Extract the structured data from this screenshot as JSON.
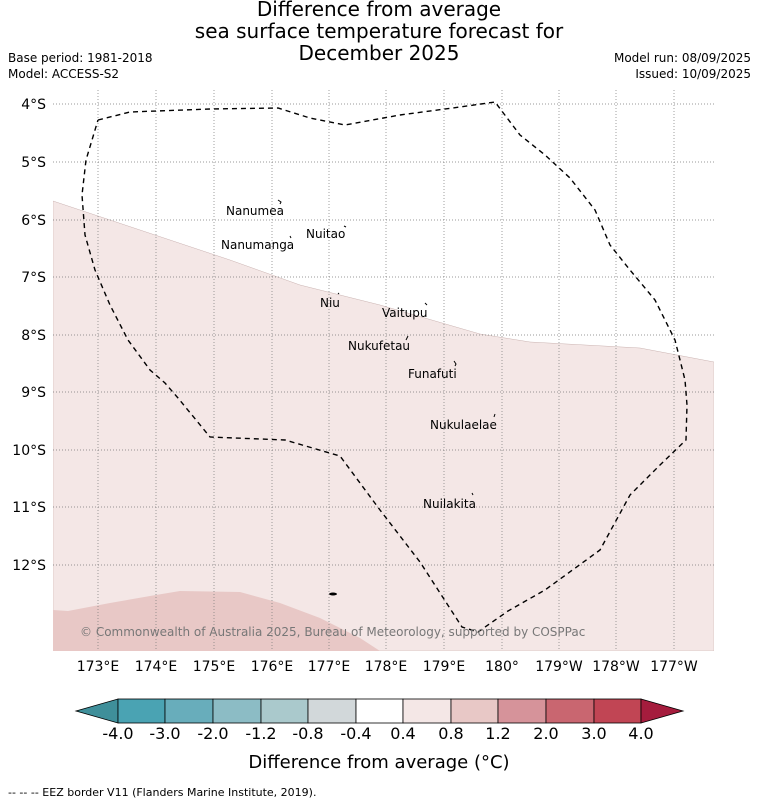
{
  "header": {
    "title_lines": [
      "Difference from average",
      "sea surface temperature forecast for",
      "December 2025"
    ],
    "base_period": "Base period: 1981-2018",
    "model": "Model: ACCESS-S2",
    "model_run": "Model run: 08/09/2025",
    "issued": "Issued: 10/09/2025"
  },
  "map": {
    "lat_labels": [
      "4°S",
      "5°S",
      "6°S",
      "7°S",
      "8°S",
      "9°S",
      "10°S",
      "11°S",
      "12°S"
    ],
    "lon_labels": [
      "173°E",
      "174°E",
      "175°E",
      "176°E",
      "177°E",
      "178°E",
      "179°E",
      "180°",
      "179°W",
      "178°W",
      "177°W"
    ],
    "islands": [
      {
        "name": "Nanumea"
      },
      {
        "name": "Nuitao"
      },
      {
        "name": "Nanumanga"
      },
      {
        "name": "Niu"
      },
      {
        "name": "Vaitupu"
      },
      {
        "name": "Nukufetau"
      },
      {
        "name": "Funafuti"
      },
      {
        "name": "Nukulaelae"
      },
      {
        "name": "Nuilakita"
      }
    ],
    "copyright": "© Commonwealth of Australia 2025, Bureau of Meteorology, supported by COSPPac",
    "colors": {
      "light_anomaly": "#f4e7e6",
      "mid_anomaly": "#e8c8c6",
      "grid": "#777777",
      "eez_line": "#000000"
    }
  },
  "colorbar": {
    "ticks": [
      "-4.0",
      "-3.0",
      "-2.0",
      "-1.2",
      "-0.8",
      "-0.4",
      "0.4",
      "0.8",
      "1.2",
      "2.0",
      "3.0",
      "4.0"
    ],
    "colors": [
      "#3f8f9a",
      "#4aa3b3",
      "#68adbb",
      "#8cbcc5",
      "#aac9cc",
      "#d2d8da",
      "#ffffff",
      "#f4e7e6",
      "#e8c8c6",
      "#d6939a",
      "#c96670",
      "#c14554",
      "#a51c3d"
    ],
    "label": "Difference from average (°C)"
  },
  "footer": {
    "eez_note": "--  --  -- EEZ border V11 (Flanders Marine Institute, 2019)."
  }
}
